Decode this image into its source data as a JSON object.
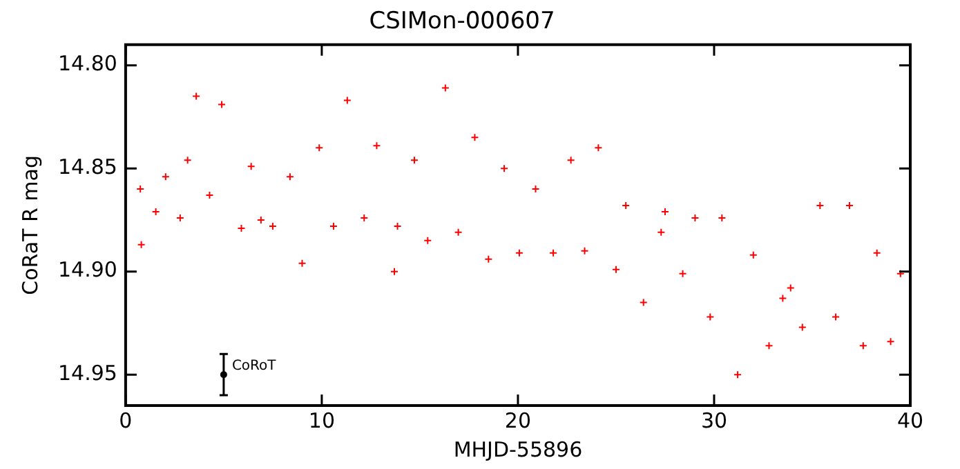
{
  "chart_data": {
    "type": "scatter",
    "title": "CSIMon-000607",
    "xlabel": "MHJD-55896",
    "ylabel": "CoRaT R mag",
    "xlim": [
      0,
      40
    ],
    "xticks": [
      0,
      10,
      20,
      30,
      40
    ],
    "ylim": [
      14.965,
      14.79
    ],
    "yticks": [
      {
        "value": 14.8,
        "label": "14.80"
      },
      {
        "value": 14.85,
        "label": "14.85"
      },
      {
        "value": 14.9,
        "label": "14.90"
      },
      {
        "value": 14.95,
        "label": "14.95"
      }
    ],
    "grid": false,
    "legend": false,
    "marker": "cross",
    "series": [
      {
        "color": "#ff0000",
        "x": [
          0.75,
          0.8,
          1.54,
          2.04,
          2.78,
          3.16,
          3.6,
          4.28,
          4.9,
          5.9,
          6.4,
          6.9,
          7.5,
          8.38,
          9.0,
          9.87,
          10.6,
          11.3,
          12.16,
          12.8,
          13.7,
          13.86,
          14.72,
          15.4,
          16.3,
          16.96,
          17.8,
          18.5,
          19.3,
          20.07,
          20.9,
          21.8,
          22.7,
          23.4,
          24.1,
          25.0,
          25.5,
          26.4,
          27.3,
          27.5,
          28.4,
          29.03,
          29.8,
          30.4,
          31.2,
          32.0,
          32.8,
          33.5,
          33.9,
          34.5,
          35.4,
          36.2,
          36.9,
          37.6,
          38.3,
          39.0,
          39.5
        ],
        "values": [
          14.86,
          14.887,
          14.871,
          14.854,
          14.874,
          14.846,
          14.815,
          14.863,
          14.819,
          14.879,
          14.849,
          14.875,
          14.878,
          14.854,
          14.896,
          14.84,
          14.878,
          14.817,
          14.874,
          14.839,
          14.9,
          14.878,
          14.846,
          14.885,
          14.811,
          14.881,
          14.835,
          14.894,
          14.85,
          14.891,
          14.86,
          14.891,
          14.846,
          14.89,
          14.84,
          14.899,
          14.868,
          14.915,
          14.881,
          14.871,
          14.901,
          14.874,
          14.922,
          14.874,
          14.95,
          14.892,
          14.936,
          14.913,
          14.908,
          14.927,
          14.868,
          14.922,
          14.868,
          14.936,
          14.891,
          14.934,
          14.901
        ]
      },
      {
        "name": "CoRoT",
        "color": "#000000",
        "type": "scatter",
        "marker": "circle",
        "x": [
          5
        ],
        "values": [
          14.95
        ],
        "errors": [
          0.01
        ]
      }
    ]
  }
}
